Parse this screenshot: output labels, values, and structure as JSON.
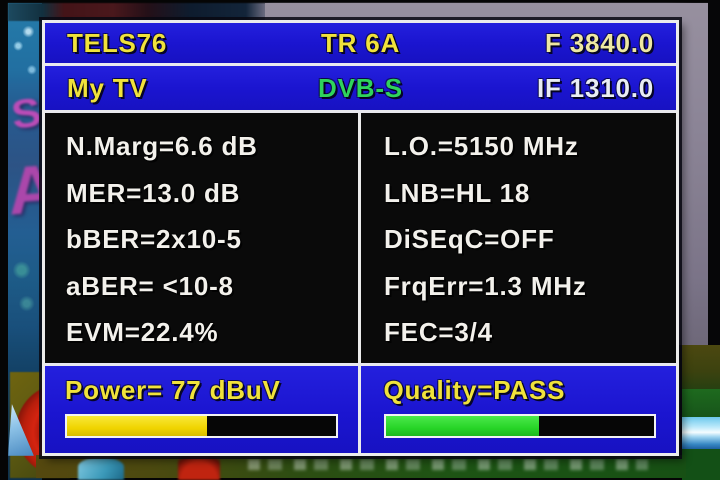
{
  "background": {
    "letter_s": "S",
    "letter_a": "A"
  },
  "header": {
    "satellite_name": "TELS76",
    "transponder": "TR 6A",
    "frequency": "F 3840.0",
    "favorite_list": "My TV",
    "system": "DVB-S",
    "if_frequency": "IF 1310.0"
  },
  "measurements": {
    "left": [
      {
        "label": "N.Marg=",
        "value": "6.6 dB"
      },
      {
        "label": "MER=",
        "value": "13.0 dB"
      },
      {
        "label": "bBER=",
        "value": "2x10-5"
      },
      {
        "label": "aBER=",
        "value": " <10-8"
      },
      {
        "label": "EVM=",
        "value": "22.4%"
      }
    ],
    "right": [
      {
        "label": "L.O.=",
        "value": "5150 MHz"
      },
      {
        "label": "LNB=",
        "value": "HL 18"
      },
      {
        "label": "DiSEqC=",
        "value": "OFF"
      },
      {
        "label": "FrqErr=",
        "value": "1.3 MHz"
      },
      {
        "label": "FEC=",
        "value": "3/4"
      }
    ]
  },
  "power": {
    "label": "Power=",
    "value": " 77 dBuV",
    "percent": 52
  },
  "quality": {
    "label": "Quality=",
    "value": "PASS",
    "percent": 57
  },
  "colors": {
    "panel_blue": "#1b15d0",
    "accent_yellow": "#f0e23b",
    "dvbs_green": "#2fd35c",
    "power_bar_yellow": "#f0d400",
    "quality_bar_green": "#27d527",
    "osd_white": "#f3f1ec"
  }
}
